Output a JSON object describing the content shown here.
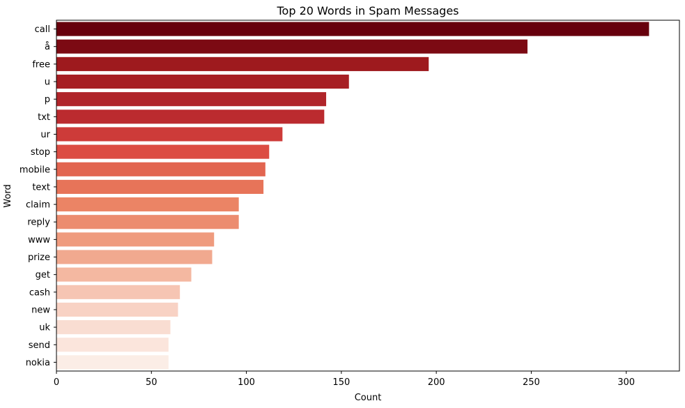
{
  "chart_data": {
    "type": "bar",
    "orientation": "horizontal",
    "title": "Top 20 Words in Spam Messages",
    "xlabel": "Count",
    "ylabel": "Word",
    "categories": [
      "call",
      "å",
      "free",
      "u",
      "p",
      "txt",
      "ur",
      "stop",
      "mobile",
      "text",
      "claim",
      "reply",
      "www",
      "prize",
      "get",
      "cash",
      "new",
      "uk",
      "send",
      "nokia"
    ],
    "values": [
      312,
      248,
      196,
      154,
      142,
      141,
      119,
      112,
      110,
      109,
      96,
      96,
      83,
      82,
      71,
      65,
      64,
      60,
      59,
      59
    ],
    "xlim": [
      0,
      328
    ],
    "xticks": [
      0,
      50,
      100,
      150,
      200,
      250,
      300
    ],
    "grid": false,
    "palette": "Reds (dark to light)",
    "colors": [
      "#67000d",
      "#7c0a13",
      "#9e1a1e",
      "#a71f24",
      "#b0252a",
      "#bb2b2f",
      "#cd3b39",
      "#dc4c43",
      "#e26550",
      "#e77459",
      "#eb8465",
      "#ec8c6f",
      "#ef9b7e",
      "#f1a98f",
      "#f4b8a1",
      "#f6c5b3",
      "#f8d2c4",
      "#f9ddd2",
      "#fbe5dc",
      "#fbede6"
    ]
  }
}
